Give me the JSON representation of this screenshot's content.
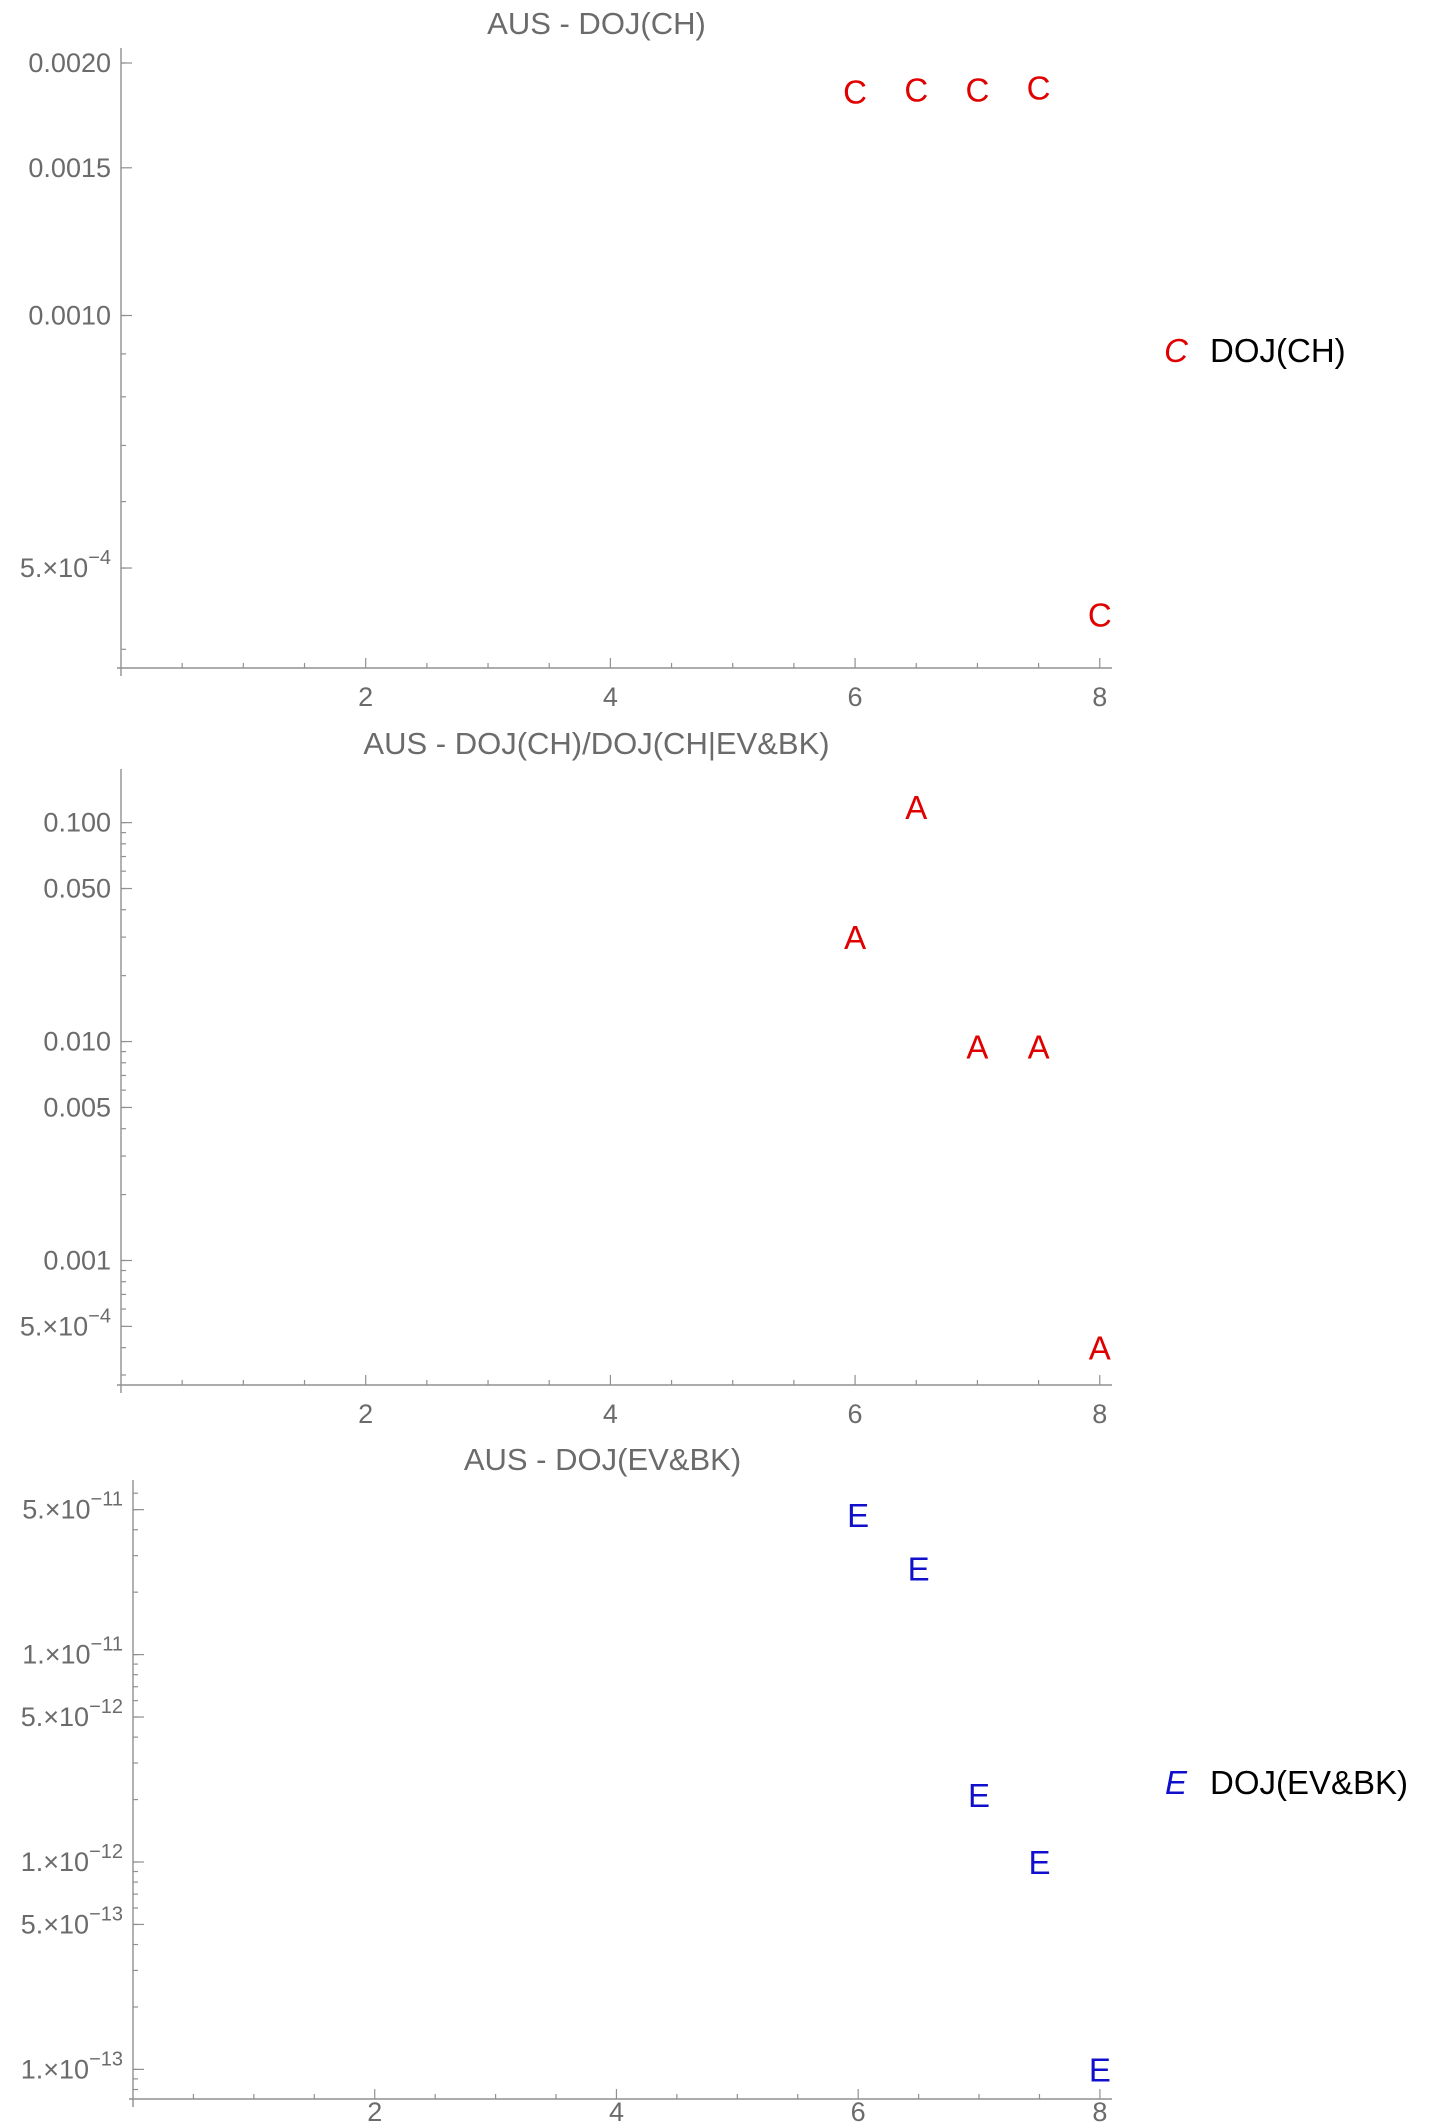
{
  "chart_data": [
    {
      "type": "scatter",
      "title": "AUS - DOJ(CH)",
      "xlabel": "",
      "ylabel": "",
      "y_scale": "log",
      "x_ticks": [
        2,
        4,
        6,
        8
      ],
      "x_tick_labels": [
        "2",
        "4",
        "6",
        "8"
      ],
      "y_ticks": [
        0.002,
        0.0015,
        0.001,
        0.0005
      ],
      "y_tick_labels": [
        "0.0020",
        "0.0015",
        "0.0010",
        "5.×10^-4"
      ],
      "xlim": [
        0,
        8.1
      ],
      "ylim": [
        0.00038,
        0.00205
      ],
      "grid": false,
      "series": [
        {
          "name": "DOJ(CH)",
          "marker": "C",
          "color": "#e00000",
          "x": [
            6,
            6.5,
            7,
            7.5,
            8
          ],
          "y": [
            0.00185,
            0.00186,
            0.00186,
            0.00187,
            0.00044
          ]
        }
      ],
      "legend": {
        "position": "right",
        "entries": [
          {
            "marker": "C",
            "label": "DOJ(CH)",
            "color": "#e00000"
          }
        ]
      }
    },
    {
      "type": "scatter",
      "title": "AUS - DOJ(CH)/DOJ(CH|EV&BK)",
      "xlabel": "",
      "ylabel": "",
      "y_scale": "log",
      "x_ticks": [
        2,
        4,
        6,
        8
      ],
      "x_tick_labels": [
        "2",
        "4",
        "6",
        "8"
      ],
      "y_ticks": [
        0.1,
        0.05,
        0.01,
        0.005,
        0.001,
        0.0005
      ],
      "y_tick_labels": [
        "0.100",
        "0.050",
        "0.010",
        "0.005",
        "0.001",
        "5.×10^-4"
      ],
      "xlim": [
        0,
        8.1
      ],
      "ylim": [
        0.00027,
        0.165
      ],
      "grid": false,
      "series": [
        {
          "name": "",
          "marker": "A",
          "color": "#e00000",
          "x": [
            6,
            6.5,
            7,
            7.5,
            8
          ],
          "y": [
            0.03,
            0.118,
            0.0095,
            0.0095,
            0.0004
          ]
        }
      ]
    },
    {
      "type": "scatter",
      "title": "AUS - DOJ(EV&BK)",
      "xlabel": "",
      "ylabel": "",
      "y_scale": "log",
      "x_ticks": [
        2,
        4,
        6,
        8
      ],
      "x_tick_labels": [
        "2",
        "4",
        "6",
        "8"
      ],
      "y_ticks": [
        5e-11,
        1e-11,
        5e-12,
        1e-12,
        5e-13,
        1e-13
      ],
      "y_tick_labels": [
        "5.×10^-11",
        "1.×10^-11",
        "5.×10^-12",
        "1.×10^-12",
        "5.×10^-13",
        "1.×10^-13"
      ],
      "xlim": [
        0,
        8.1
      ],
      "ylim": [
        7.2e-14,
        6.5e-11
      ],
      "grid": false,
      "series": [
        {
          "name": "DOJ(EV&BK)",
          "marker": "E",
          "color": "#1010cc",
          "x": [
            6,
            6.5,
            7,
            7.5,
            8
          ],
          "y": [
            4.7e-11,
            2.6e-11,
            2.1e-12,
            1e-12,
            1e-13
          ]
        }
      ],
      "legend": {
        "position": "right",
        "entries": [
          {
            "marker": "E",
            "label": "DOJ(EV&BK)",
            "color": "#1010cc"
          }
        ]
      }
    }
  ]
}
